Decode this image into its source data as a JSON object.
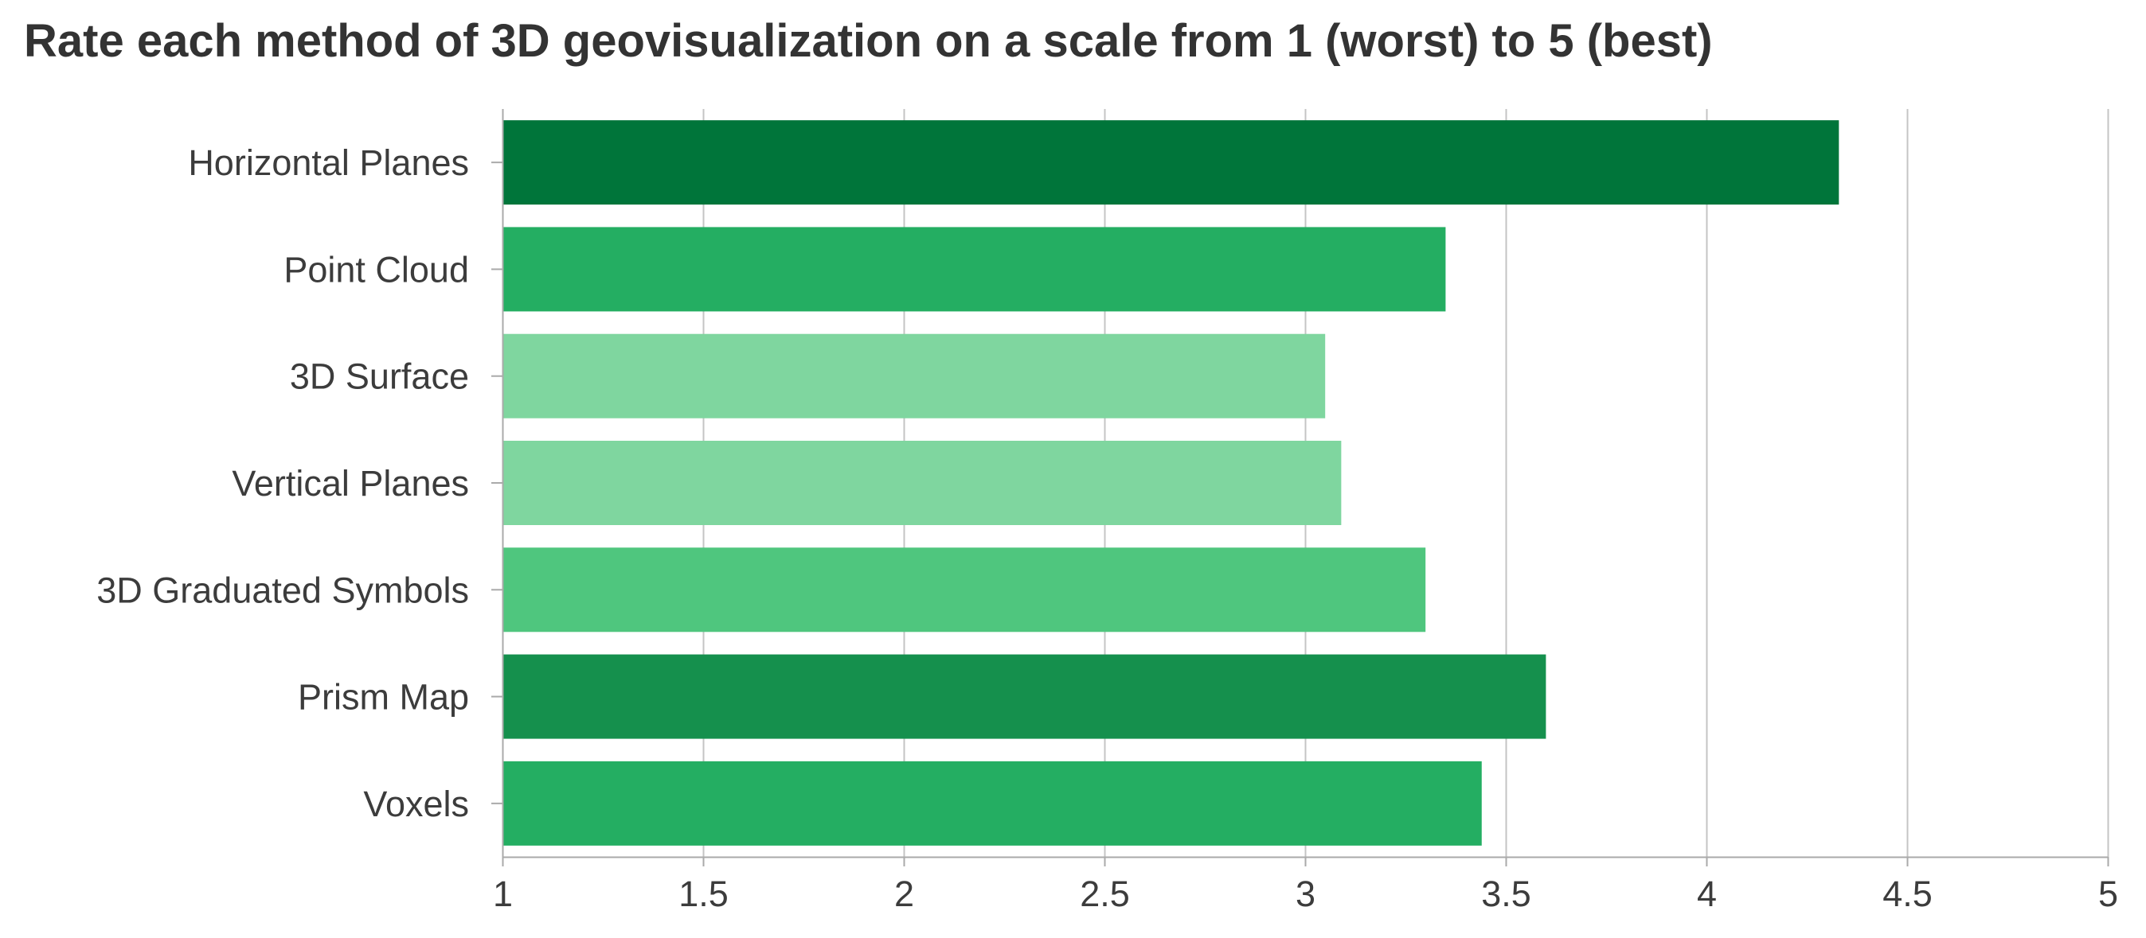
{
  "chart_data": {
    "type": "bar",
    "orientation": "horizontal",
    "title": "Rate each method of 3D geovisualization on a scale from 1 (worst) to 5 (best)",
    "xlabel": "",
    "ylabel": "",
    "categories": [
      "Horizontal Planes",
      "Point Cloud",
      "3D Surface",
      "Vertical Planes",
      "3D Graduated Symbols",
      "Prism Map",
      "Voxels"
    ],
    "values": [
      4.33,
      3.35,
      3.05,
      3.09,
      3.3,
      3.6,
      3.44
    ],
    "bar_colors": [
      "#00753a",
      "#24ae62",
      "#7fd69f",
      "#7fd69f",
      "#4fc67e",
      "#15904d",
      "#24ae62"
    ],
    "xlim": [
      1,
      5
    ],
    "xticks": [
      1,
      1.5,
      2,
      2.5,
      3,
      3.5,
      4,
      4.5,
      5
    ],
    "xtick_labels": [
      "1",
      "1.5",
      "2",
      "2.5",
      "3",
      "3.5",
      "4",
      "4.5",
      "5"
    ],
    "grid": true,
    "legend": "none",
    "grid_color": "#c4c4c4",
    "axis_color": "#aaaaaa"
  }
}
